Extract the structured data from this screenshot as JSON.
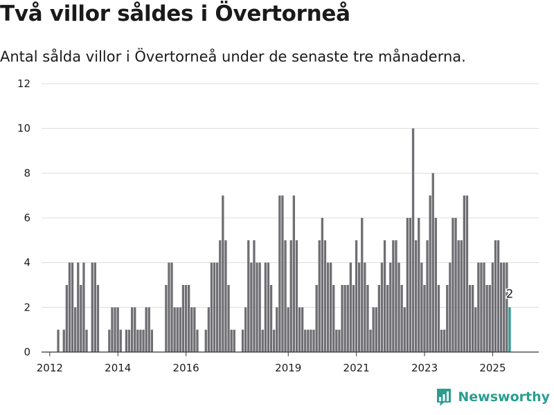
{
  "title": "Två villor såldes i Övertorneå",
  "subtitle": "Antal sålda villor i Övertorneå under de senaste tre månaderna.",
  "brand": {
    "name": "Newsworthy"
  },
  "colors": {
    "bar": "#6e6e73",
    "highlight": "#2a9d8f",
    "grid": "#dcdcdc",
    "brand": "#2a9d8f"
  },
  "chart_data": {
    "type": "bar",
    "title": "Två villor såldes i Övertorneå",
    "subtitle": "Antal sålda villor i Övertorneå under de senaste tre månaderna.",
    "x_start": "2011-11",
    "ylim": [
      0,
      12
    ],
    "yticks": [
      0,
      2,
      4,
      6,
      8,
      10,
      12
    ],
    "xticks": [
      2012,
      2014,
      2016,
      2019,
      2021,
      2023,
      2025
    ],
    "grid": true,
    "values": [
      0,
      0,
      0,
      0,
      0,
      1,
      0,
      1,
      3,
      4,
      4,
      2,
      4,
      3,
      4,
      1,
      0,
      4,
      4,
      3,
      0,
      0,
      0,
      1,
      2,
      2,
      2,
      1,
      0,
      1,
      1,
      2,
      2,
      1,
      1,
      1,
      2,
      2,
      1,
      0,
      0,
      0,
      0,
      3,
      4,
      4,
      2,
      2,
      2,
      3,
      3,
      3,
      2,
      2,
      1,
      0,
      0,
      1,
      2,
      4,
      4,
      4,
      5,
      7,
      5,
      3,
      1,
      1,
      0,
      0,
      1,
      2,
      5,
      4,
      5,
      4,
      4,
      1,
      4,
      4,
      3,
      1,
      2,
      7,
      7,
      5,
      2,
      5,
      7,
      5,
      2,
      2,
      1,
      1,
      1,
      1,
      3,
      5,
      6,
      5,
      4,
      4,
      3,
      1,
      1,
      3,
      3,
      3,
      4,
      3,
      5,
      4,
      6,
      4,
      3,
      1,
      2,
      2,
      3,
      4,
      5,
      3,
      4,
      5,
      5,
      4,
      3,
      2,
      6,
      6,
      10,
      5,
      6,
      4,
      3,
      5,
      7,
      8,
      6,
      3,
      1,
      1,
      3,
      4,
      6,
      6,
      5,
      5,
      7,
      7,
      3,
      3,
      2,
      4,
      4,
      4,
      3,
      3,
      4,
      5,
      5,
      4,
      4,
      4,
      2
    ],
    "highlight_last": true,
    "last_value_label": "2"
  }
}
